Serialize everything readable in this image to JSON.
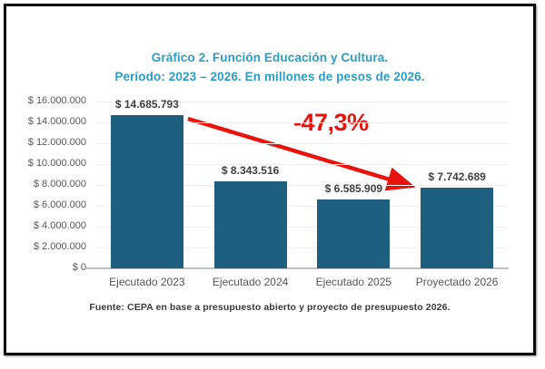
{
  "title": {
    "line1": "Gráfico 2. Función Educación y Cultura.",
    "line2": "Período: 2023 – 2026. En millones de pesos de 2026."
  },
  "annotation": {
    "change_label": "-47,3%"
  },
  "source": "Fuente: CEPA en base a presupuesto abierto y proyecto de presupuesto 2026.",
  "colors": {
    "title": "#2b9dc3",
    "bar": "#1e5f80",
    "annotation_red": "#e8140c",
    "axis_text": "#565656",
    "value_label": "#3f3f3f",
    "gridline": "#ededed",
    "baseline": "#c1c1c1",
    "source_text": "#3a3a3a",
    "frame_border": "#0a0a0a"
  },
  "chart_data": {
    "type": "bar",
    "categories": [
      "Ejecutado 2023",
      "Ejecutado 2024",
      "Ejecutado 2025",
      "Proyectado 2026"
    ],
    "values": [
      14685793,
      8343516,
      6585909,
      7742689
    ],
    "value_labels": [
      "$ 14.685.793",
      "$ 8.343.516",
      "$ 6.585.909",
      "$ 7.742.689"
    ],
    "y_ticks": [
      "$ 16.000.000",
      "$ 14.000.000",
      "$ 12.000.000",
      "$ 10.000.000",
      "$ 8.000.000",
      "$ 6.000.000",
      "$ 4.000.000",
      "$ 2.000.000",
      "$ 0"
    ],
    "ylim": [
      0,
      16000000
    ],
    "grid": true,
    "legend": "none",
    "title": "Gráfico 2. Función Educación y Cultura. Período: 2023 – 2026. En millones de pesos de 2026.",
    "xlabel": "",
    "ylabel": "",
    "annotation": {
      "text": "-47,3%",
      "from_category": "Ejecutado 2023",
      "to_category": "Proyectado 2026"
    }
  }
}
